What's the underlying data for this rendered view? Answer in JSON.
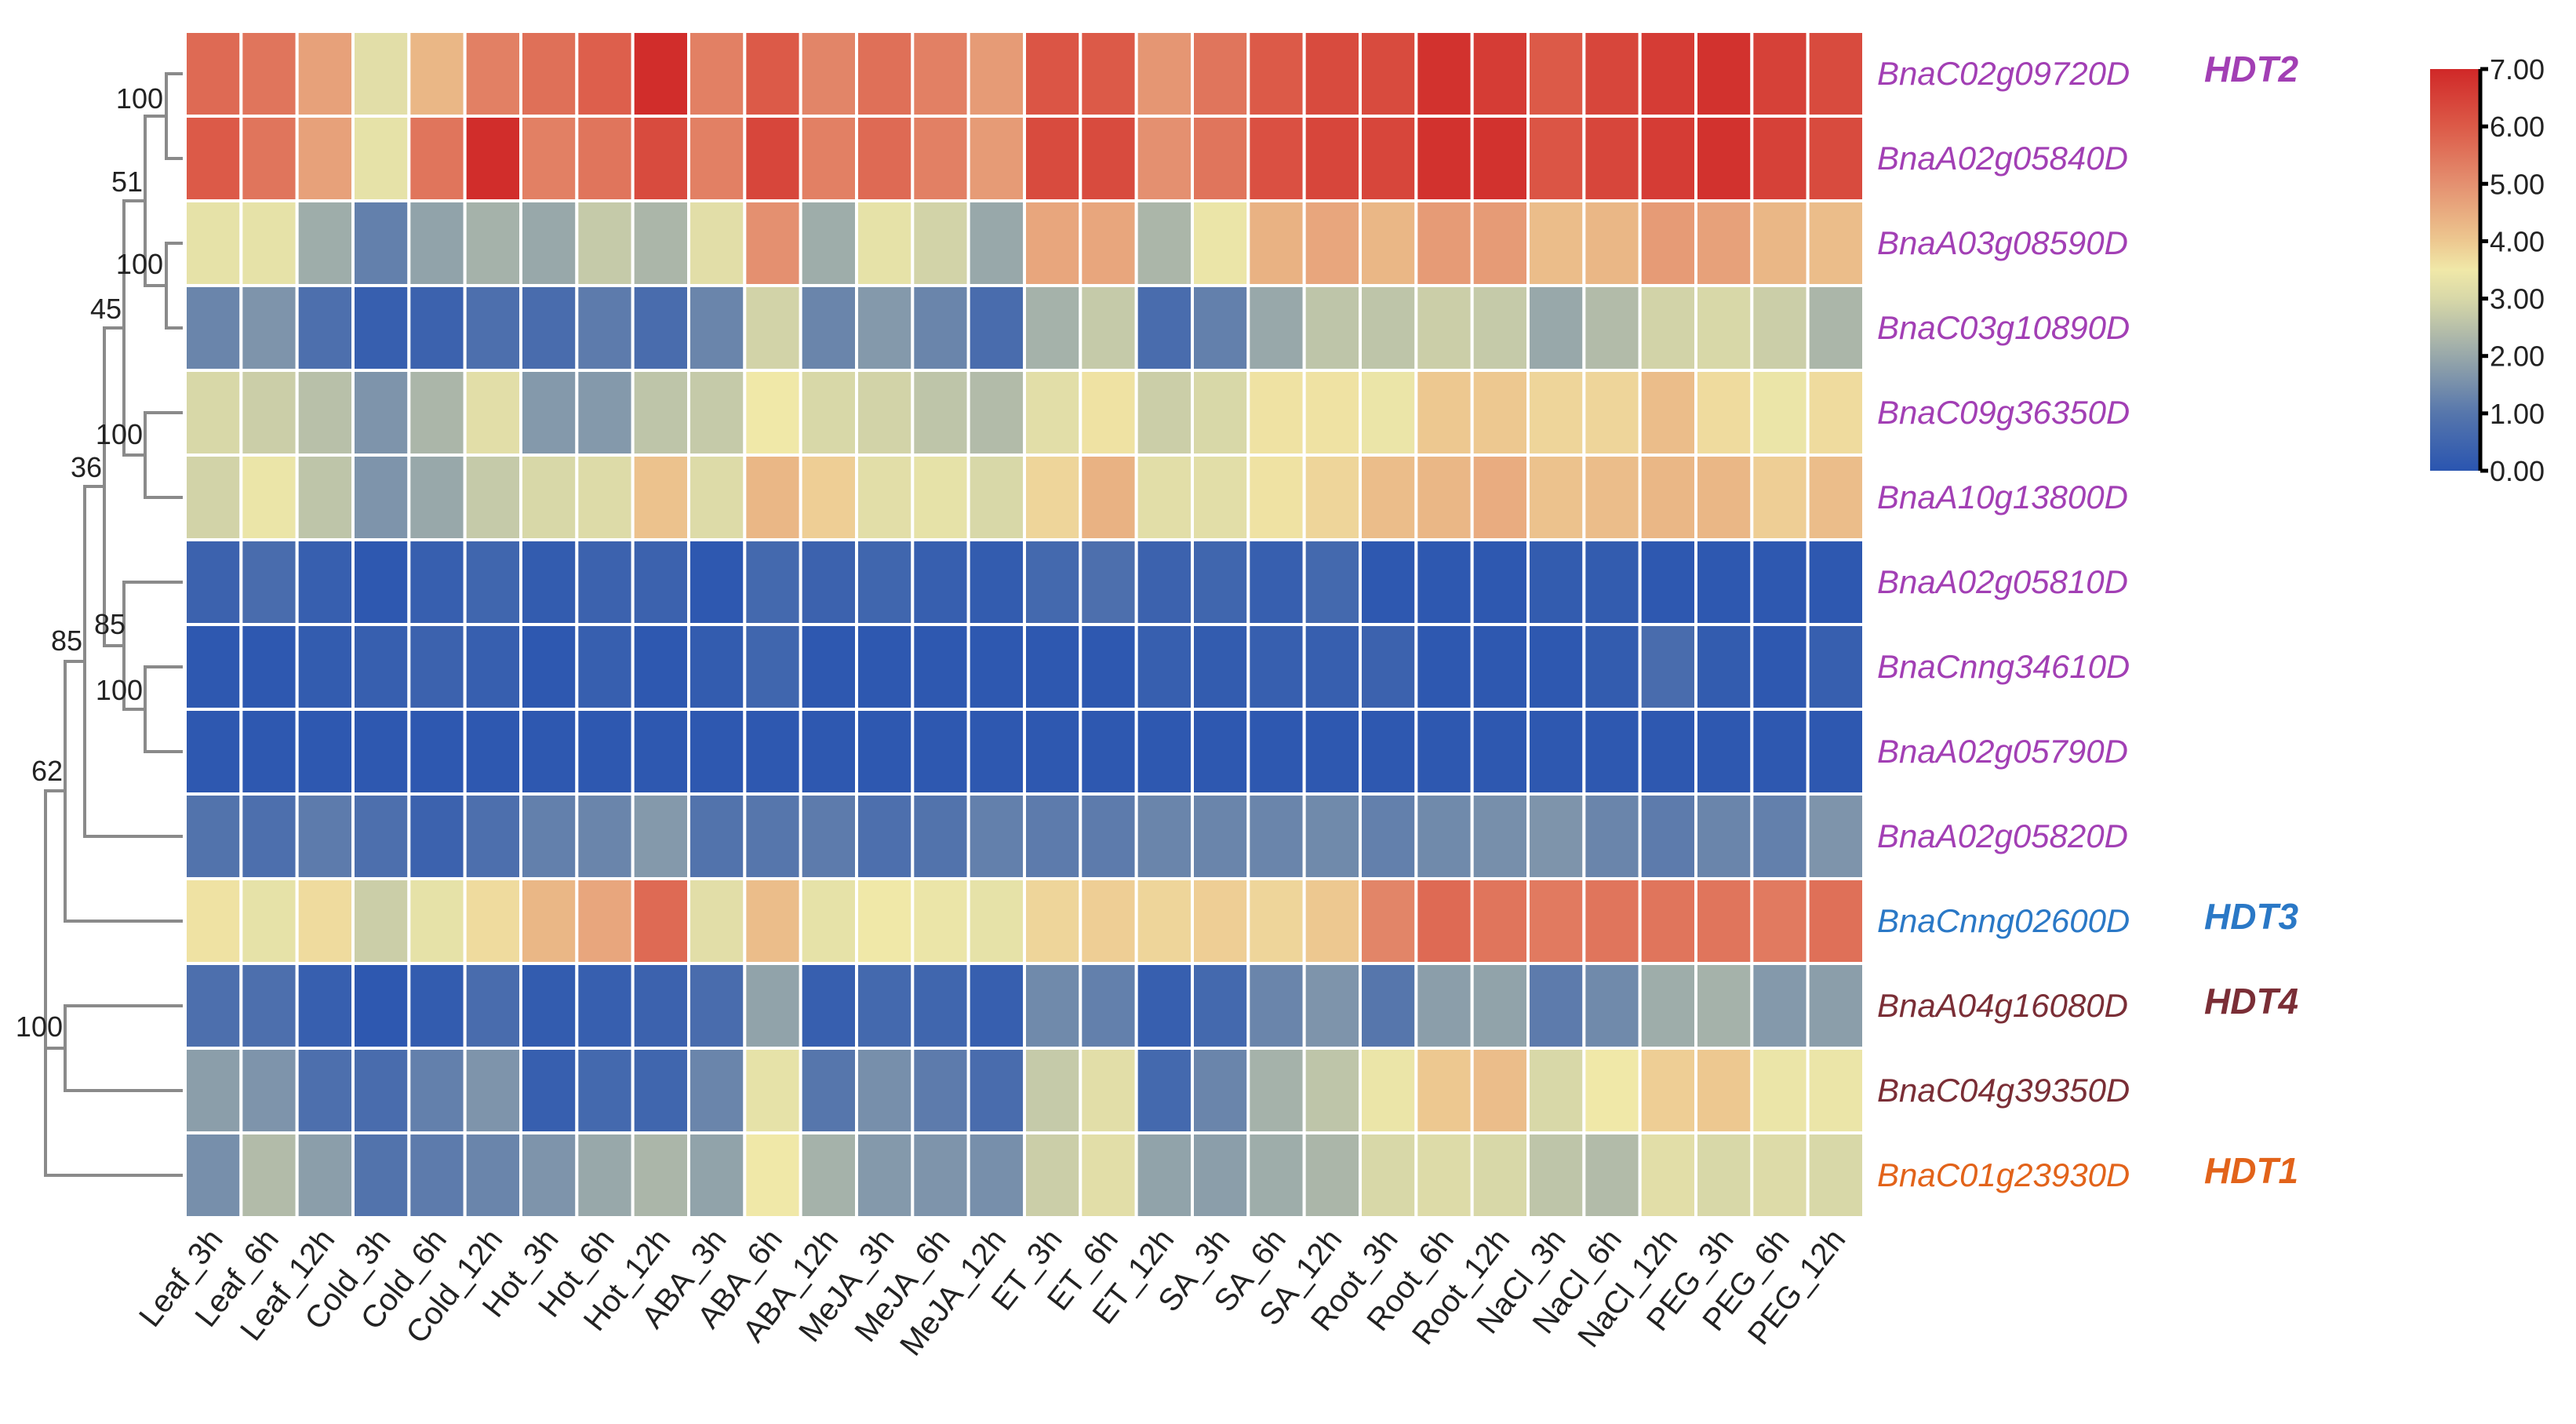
{
  "chart_data": {
    "type": "heatmap",
    "title": "",
    "columns": [
      "Leaf_3h",
      "Leaf_6h",
      "Leaf_12h",
      "Cold_3h",
      "Cold_6h",
      "Cold_12h",
      "Hot_3h",
      "Hot_6h",
      "Hot_12h",
      "ABA_3h",
      "ABA_6h",
      "ABA_12h",
      "MeJA_3h",
      "MeJA_6h",
      "MeJA_12h",
      "ET_3h",
      "ET_6h",
      "ET_12h",
      "SA_3h",
      "SA_6h",
      "SA_12h",
      "Root_3h",
      "Root_6h",
      "Root_12h",
      "NaCl_3h",
      "NaCl_6h",
      "NaCl_12h",
      "PEG_3h",
      "PEG_6h",
      "PEG_12h"
    ],
    "rows": [
      {
        "gene": "BnaC02g09720D",
        "group": "HDT2",
        "color": "#a23fb4"
      },
      {
        "gene": "BnaA02g05840D",
        "group": "",
        "color": "#a23fb4"
      },
      {
        "gene": "BnaA03g08590D",
        "group": "",
        "color": "#a23fb4"
      },
      {
        "gene": "BnaC03g10890D",
        "group": "",
        "color": "#a23fb4"
      },
      {
        "gene": "BnaC09g36350D",
        "group": "",
        "color": "#a23fb4"
      },
      {
        "gene": "BnaA10g13800D",
        "group": "",
        "color": "#a23fb4"
      },
      {
        "gene": "BnaA02g05810D",
        "group": "",
        "color": "#a23fb4"
      },
      {
        "gene": "BnaCnng34610D",
        "group": "",
        "color": "#a23fb4"
      },
      {
        "gene": "BnaA02g05790D",
        "group": "",
        "color": "#a23fb4"
      },
      {
        "gene": "BnaA02g05820D",
        "group": "",
        "color": "#a23fb4"
      },
      {
        "gene": "BnaCnng02600D",
        "group": "HDT3",
        "color": "#2a78c6"
      },
      {
        "gene": "BnaA04g16080D",
        "group": "HDT4",
        "color": "#7a2e36"
      },
      {
        "gene": "BnaC04g39350D",
        "group": "",
        "color": "#7a2e36"
      },
      {
        "gene": "BnaC01g23930D",
        "group": "HDT1",
        "color": "#e2631a"
      }
    ],
    "values": [
      [
        5.7,
        5.5,
        4.7,
        3.2,
        4.3,
        5.3,
        5.6,
        5.9,
        6.9,
        5.3,
        6.0,
        5.2,
        5.6,
        5.3,
        4.8,
        6.1,
        6.0,
        4.9,
        5.5,
        6.0,
        6.3,
        6.3,
        6.8,
        6.6,
        6.0,
        6.4,
        6.6,
        6.8,
        6.5,
        6.3
      ],
      [
        6.0,
        5.5,
        4.7,
        3.3,
        5.5,
        6.9,
        5.3,
        5.5,
        6.3,
        5.3,
        6.4,
        5.3,
        5.7,
        5.3,
        4.8,
        6.3,
        6.3,
        5.0,
        5.5,
        6.2,
        6.4,
        6.4,
        6.8,
        6.8,
        6.1,
        6.4,
        6.6,
        6.8,
        6.5,
        6.3
      ],
      [
        3.3,
        3.3,
        2.1,
        1.2,
        1.9,
        2.2,
        2.0,
        2.7,
        2.3,
        3.2,
        5.0,
        2.1,
        3.3,
        2.9,
        2.0,
        4.6,
        4.6,
        2.3,
        3.4,
        4.4,
        4.6,
        4.3,
        4.8,
        4.8,
        4.2,
        4.3,
        4.8,
        4.7,
        4.3,
        4.2
      ],
      [
        1.3,
        1.6,
        0.8,
        0.3,
        0.4,
        0.8,
        0.7,
        1.1,
        0.7,
        1.3,
        2.9,
        1.3,
        1.7,
        1.3,
        0.7,
        2.2,
        2.7,
        0.7,
        1.2,
        2.0,
        2.6,
        2.6,
        2.8,
        2.7,
        2.0,
        2.4,
        2.9,
        3.0,
        2.8,
        2.3
      ],
      [
        3.0,
        2.8,
        2.5,
        1.6,
        2.3,
        3.2,
        1.7,
        1.7,
        2.6,
        2.7,
        3.5,
        3.0,
        2.9,
        2.6,
        2.4,
        3.2,
        3.6,
        2.8,
        3.0,
        3.6,
        3.6,
        3.4,
        4.0,
        4.0,
        3.8,
        3.8,
        4.2,
        3.7,
        3.4,
        3.7
      ],
      [
        2.9,
        3.4,
        2.6,
        1.6,
        2.0,
        2.7,
        3.0,
        3.1,
        4.1,
        3.1,
        4.3,
        3.9,
        3.2,
        3.3,
        3.0,
        3.8,
        4.4,
        3.2,
        3.2,
        3.6,
        3.8,
        4.2,
        4.3,
        4.5,
        4.1,
        4.2,
        4.3,
        4.3,
        3.9,
        4.2
      ],
      [
        0.4,
        0.7,
        0.3,
        0.1,
        0.3,
        0.5,
        0.2,
        0.4,
        0.4,
        0.1,
        0.6,
        0.4,
        0.5,
        0.3,
        0.2,
        0.6,
        0.8,
        0.4,
        0.5,
        0.3,
        0.6,
        0.1,
        0.1,
        0.1,
        0.2,
        0.2,
        0.1,
        0.1,
        0.1,
        0.1
      ],
      [
        0.1,
        0.1,
        0.2,
        0.3,
        0.4,
        0.3,
        0.1,
        0.3,
        0.1,
        0.2,
        0.5,
        0.1,
        0.1,
        0.1,
        0.1,
        0.1,
        0.1,
        0.3,
        0.2,
        0.3,
        0.3,
        0.4,
        0.1,
        0.1,
        0.1,
        0.2,
        0.7,
        0.2,
        0.1,
        0.3
      ],
      [
        0.1,
        0.1,
        0.1,
        0.1,
        0.1,
        0.1,
        0.1,
        0.1,
        0.1,
        0.1,
        0.1,
        0.1,
        0.1,
        0.1,
        0.1,
        0.1,
        0.1,
        0.1,
        0.1,
        0.1,
        0.1,
        0.1,
        0.1,
        0.1,
        0.1,
        0.1,
        0.1,
        0.1,
        0.1,
        0.1
      ],
      [
        0.9,
        0.8,
        1.1,
        0.8,
        0.4,
        0.8,
        1.2,
        1.3,
        1.7,
        0.9,
        1.0,
        1.1,
        0.8,
        0.9,
        1.2,
        1.1,
        1.1,
        1.3,
        1.3,
        1.3,
        1.4,
        1.2,
        1.4,
        1.5,
        1.6,
        1.3,
        1.1,
        1.3,
        1.2,
        1.6
      ],
      [
        3.6,
        3.3,
        3.7,
        2.8,
        3.3,
        3.7,
        4.3,
        4.6,
        5.7,
        3.2,
        4.2,
        3.3,
        3.5,
        3.4,
        3.3,
        3.8,
        3.9,
        3.8,
        3.9,
        3.8,
        4.0,
        5.2,
        5.7,
        5.5,
        5.4,
        5.5,
        5.5,
        5.5,
        5.4,
        5.6
      ],
      [
        0.8,
        0.8,
        0.3,
        0.1,
        0.2,
        0.7,
        0.2,
        0.3,
        0.4,
        0.7,
        1.9,
        0.3,
        0.6,
        0.5,
        0.3,
        1.4,
        1.2,
        0.3,
        0.6,
        1.3,
        1.6,
        1.0,
        1.8,
        1.9,
        1.1,
        1.4,
        2.1,
        2.2,
        1.7,
        1.8
      ],
      [
        1.8,
        1.6,
        0.8,
        0.7,
        1.2,
        1.6,
        0.3,
        0.6,
        0.5,
        1.3,
        3.3,
        1.0,
        1.5,
        1.1,
        0.7,
        2.7,
        3.2,
        0.6,
        1.3,
        2.2,
        2.6,
        3.4,
        4.0,
        4.2,
        3.0,
        3.5,
        3.9,
        4.0,
        3.4,
        3.4
      ],
      [
        1.5,
        2.4,
        1.8,
        0.9,
        1.1,
        1.3,
        1.6,
        2.0,
        2.3,
        1.9,
        3.5,
        2.2,
        1.7,
        1.6,
        1.5,
        2.8,
        3.2,
        1.9,
        1.8,
        2.1,
        2.3,
        3.0,
        3.1,
        3.0,
        2.6,
        2.4,
        3.2,
        3.0,
        3.1,
        3.0
      ]
    ],
    "color_scale": {
      "range": [
        0,
        7
      ],
      "ticks": [
        "0.00",
        "1.00",
        "2.00",
        "3.00",
        "4.00",
        "5.00",
        "6.00",
        "7.00"
      ],
      "stops": [
        [
          0,
          "#2a55b0"
        ],
        [
          1,
          "#5676ac"
        ],
        [
          2,
          "#98a8aa"
        ],
        [
          3,
          "#d8d8a8"
        ],
        [
          3.5,
          "#f0e8a8"
        ],
        [
          4,
          "#edc890"
        ],
        [
          5,
          "#e49070"
        ],
        [
          6,
          "#dc5a48"
        ],
        [
          7,
          "#d02828"
        ]
      ]
    },
    "dendrogram_bootstrap": [
      "100",
      "51",
      "100",
      "45",
      "100",
      "36",
      "85",
      "85",
      "100",
      "62",
      "100"
    ],
    "legend_placement": "top-right"
  }
}
